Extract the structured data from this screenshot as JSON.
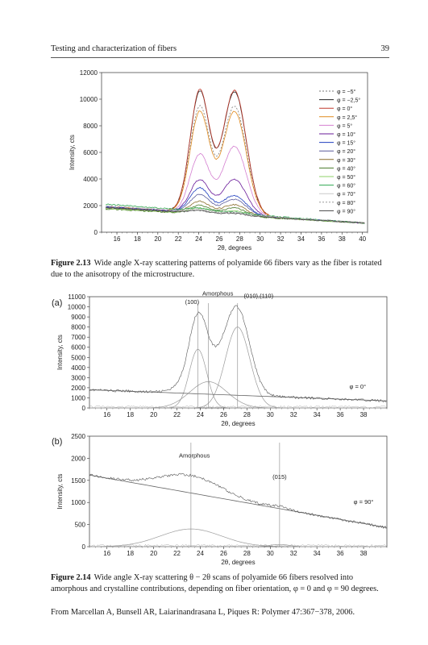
{
  "header": {
    "title": "Testing and characterization of fibers",
    "page": "39"
  },
  "fig213": {
    "caption_label": "Figure 2.13",
    "caption_text": "Wide angle X-ray scattering patterns of polyamide 66 fibers vary as the fiber is rotated due to the anisotropy of the microstructure."
  },
  "fig214": {
    "caption_label": "Figure 2.14",
    "caption_text": "Wide angle X-ray scattering θ − 2θ scans of polyamide 66 fibers resolved into amorphous and crystalline contributions, depending on fiber orientation, φ = 0 and φ = 90 degrees.",
    "source": "From Marcellan A, Bunsell AR, Laiarinandrasana L, Piques R: Polymer 47:367−378, 2006."
  },
  "chart_data": [
    {
      "type": "line",
      "title": "",
      "xlabel": "2θ, degrees",
      "ylabel": "Intensity, cts",
      "xlim": [
        14.5,
        40.5
      ],
      "ylim": [
        0,
        12000
      ],
      "xticks": [
        "16",
        "18",
        "20",
        "22",
        "24",
        "26",
        "28",
        "30",
        "32",
        "34",
        "36",
        "38",
        "40"
      ],
      "yticks": [
        "0",
        "2000",
        "4000",
        "6000",
        "8000",
        "10000",
        "12000"
      ],
      "legend_position": "top-right",
      "series": [
        {
          "name": "φ = −5°",
          "color": "#7a7a7a",
          "dash": "2,2",
          "base": 1900,
          "p1": 9100,
          "p2": 9300
        },
        {
          "name": "φ = −2,5°",
          "color": "#222222",
          "dash": "",
          "base": 1900,
          "p1": 10200,
          "p2": 10400
        },
        {
          "name": "φ =   0°",
          "color": "#c0392b",
          "dash": "",
          "base": 1900,
          "p1": 10300,
          "p2": 10500
        },
        {
          "name": "φ = 2,5°",
          "color": "#e08a1e",
          "dash": "",
          "base": 1900,
          "p1": 8700,
          "p2": 8900
        },
        {
          "name": "φ = 5°",
          "color": "#d47fd0",
          "dash": "",
          "base": 1900,
          "p1": 5500,
          "p2": 6300
        },
        {
          "name": "φ = 10°",
          "color": "#6a1b9a",
          "dash": "",
          "base": 1900,
          "p1": 3600,
          "p2": 3800
        },
        {
          "name": "φ = 15°",
          "color": "#1f3fbf",
          "dash": "",
          "base": 1900,
          "p1": 3000,
          "p2": 2600
        },
        {
          "name": "φ = 20°",
          "color": "#5a5a9a",
          "dash": "",
          "base": 1850,
          "p1": 2500,
          "p2": 2300
        },
        {
          "name": "φ = 30°",
          "color": "#8a6d2b",
          "dash": "",
          "base": 1800,
          "p1": 2000,
          "p2": 1900
        },
        {
          "name": "φ = 40°",
          "color": "#4a7a2a",
          "dash": "",
          "base": 1750,
          "p1": 1700,
          "p2": 1650
        },
        {
          "name": "φ = 50°",
          "color": "#8fd16a",
          "dash": "",
          "base": 1800,
          "p1": 1500,
          "p2": 1450
        },
        {
          "name": "φ = 60°",
          "color": "#2fa84f",
          "dash": "",
          "base": 2100,
          "p1": 1500,
          "p2": 1400
        },
        {
          "name": "φ = 70°",
          "color": "#c9c9c9",
          "dash": "",
          "base": 2000,
          "p1": 1400,
          "p2": 1350
        },
        {
          "name": "φ = 80°",
          "color": "#9a9a9a",
          "dash": "2,2",
          "base": 1900,
          "p1": 1350,
          "p2": 1300
        },
        {
          "name": "φ = 90°",
          "color": "#444444",
          "dash": "",
          "base": 1850,
          "p1": 1300,
          "p2": 1250
        }
      ]
    },
    {
      "type": "line",
      "panel": "(a)",
      "xlabel": "2θ, degrees",
      "ylabel": "Intensity, cts",
      "xlim": [
        14.5,
        40
      ],
      "ylim": [
        0,
        11000
      ],
      "xticks": [
        "16",
        "18",
        "20",
        "22",
        "24",
        "26",
        "28",
        "30",
        "32",
        "34",
        "36",
        "38"
      ],
      "yticks": [
        "0",
        "1000",
        "2000",
        "3000",
        "4000",
        "5000",
        "6000",
        "7000",
        "8000",
        "9000",
        "10000",
        "11000"
      ],
      "annotations": [
        {
          "text": "(100)",
          "x": 23.3,
          "y": 10300
        },
        {
          "text": "Amorphous",
          "x": 25.5,
          "y": 11100
        },
        {
          "text": "(010),(110)",
          "x": 29.0,
          "y": 10900
        },
        {
          "text": "φ = 0°",
          "x": 37.5,
          "y": 1900
        }
      ],
      "peaks": [
        {
          "label": "(100)",
          "center": 23.8,
          "height": 5800,
          "width": 0.75
        },
        {
          "label": "Amorphous",
          "center": 24.7,
          "height": 2600,
          "width": 1.6
        },
        {
          "label": "(010),(110)",
          "center": 27.2,
          "height": 8000,
          "width": 1.05
        }
      ],
      "baseline": [
        1800,
        700
      ],
      "markers": [
        23.8,
        24.7,
        27.2
      ]
    },
    {
      "type": "line",
      "panel": "(b)",
      "xlabel": "2θ, degrees",
      "ylabel": "Intensity, cts",
      "xlim": [
        14.5,
        40
      ],
      "ylim": [
        0,
        2500
      ],
      "xticks": [
        "16",
        "18",
        "20",
        "22",
        "24",
        "26",
        "28",
        "30",
        "32",
        "34",
        "36",
        "38"
      ],
      "yticks": [
        "0",
        "500",
        "1000",
        "1500",
        "2000",
        "2500"
      ],
      "annotations": [
        {
          "text": "Amorphous",
          "x": 23.5,
          "y": 2020
        },
        {
          "text": "(015)",
          "x": 30.8,
          "y": 1530
        },
        {
          "text": "φ = 90°",
          "x": 38.0,
          "y": 970
        }
      ],
      "peaks": [
        {
          "label": "Amorphous",
          "center": 23.2,
          "height": 400,
          "width": 2.6
        },
        {
          "label": "(015)",
          "center": 30.8,
          "height": 50,
          "width": 0.8
        }
      ],
      "baseline": [
        1620,
        430
      ],
      "markers": [
        23.2,
        30.8
      ]
    }
  ]
}
